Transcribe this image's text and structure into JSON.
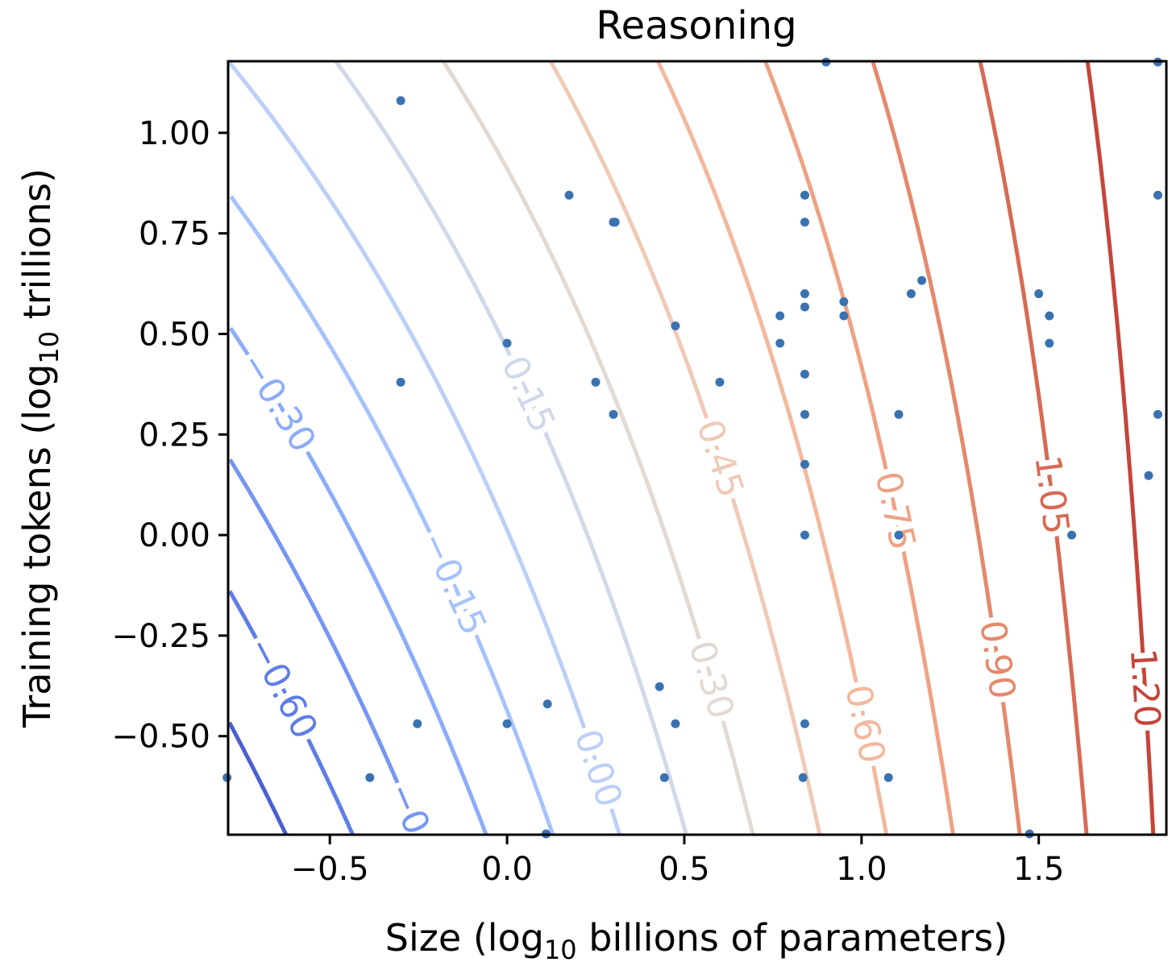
{
  "chart_data": {
    "type": "contour+scatter",
    "title": "Reasoning",
    "xlabel": {
      "prefix": "Size (log",
      "sub": "10",
      "suffix": "  billions of parameters)"
    },
    "ylabel": {
      "prefix": "Training tokens (log",
      "sub": "10",
      "suffix": "  trillions)"
    },
    "xlim": [
      -0.787,
      1.86
    ],
    "ylim": [
      -0.745,
      1.178
    ],
    "xticks": [
      -0.5,
      0.0,
      0.5,
      1.0,
      1.5
    ],
    "xtick_labels": [
      "−0.5",
      "0.0",
      "0.5",
      "1.0",
      "1.5"
    ],
    "yticks": [
      -0.5,
      -0.25,
      0.0,
      0.25,
      0.5,
      0.75,
      1.0
    ],
    "ytick_labels": [
      "−0.50",
      "−0.25",
      "0.00",
      "0.25",
      "0.50",
      "0.75",
      "1.00"
    ],
    "contour_levels": [
      -0.75,
      -0.6,
      -0.45,
      -0.3,
      -0.15,
      0.0,
      0.15,
      0.3,
      0.45,
      0.6,
      0.75,
      0.9,
      1.05,
      1.2
    ],
    "contour_colors": [
      "#4a5fd0",
      "#5f7de6",
      "#7596f3",
      "#8cacfb",
      "#a6c2fd",
      "#bccff6",
      "#d0d8ea",
      "#e2d9d3",
      "#efcab7",
      "#f3b89e",
      "#eea285",
      "#e4896c",
      "#d66a54",
      "#c4453a"
    ],
    "contour_labels": [
      {
        "level": -0.6,
        "text": "−0.60",
        "y": -0.38
      },
      {
        "level": -0.45,
        "text": "−0",
        "y": -0.68
      },
      {
        "level": -0.3,
        "text": "−0.30",
        "y": 0.33
      },
      {
        "level": -0.15,
        "text": "−0.15",
        "y": -0.12
      },
      {
        "level": 0.0,
        "text": "0.00",
        "y": -0.58
      },
      {
        "level": 0.15,
        "text": "0.15",
        "y": 0.35
      },
      {
        "level": 0.3,
        "text": "0.30",
        "y": -0.36
      },
      {
        "level": 0.45,
        "text": "0.45",
        "y": 0.19
      },
      {
        "level": 0.6,
        "text": "0.60",
        "y": -0.47
      },
      {
        "level": 0.75,
        "text": "0.75",
        "y": 0.06
      },
      {
        "level": 0.9,
        "text": "0.90",
        "y": -0.31
      },
      {
        "level": 1.05,
        "text": "1.05",
        "y": 0.1
      },
      {
        "level": 1.2,
        "text": "1.20",
        "y": -0.38
      }
    ],
    "surface_model": "z = a(y)*x + b(y), a(y)=0.797-0.157*(y+0.745), b(y)=-0.253+0.334*(y+0.745)",
    "points_color": "#3a72b0",
    "points": [
      [
        0.9,
        1.176
      ],
      [
        1.836,
        1.176
      ],
      [
        -0.3,
        1.08
      ],
      [
        0.175,
        0.845
      ],
      [
        0.84,
        0.845
      ],
      [
        1.836,
        0.845
      ],
      [
        0.3,
        0.778
      ],
      [
        0.305,
        0.778
      ],
      [
        0.84,
        0.778
      ],
      [
        0.84,
        0.6
      ],
      [
        0.84,
        0.567
      ],
      [
        0.95,
        0.58
      ],
      [
        0.95,
        0.545
      ],
      [
        1.14,
        0.6
      ],
      [
        1.17,
        0.633
      ],
      [
        0.77,
        0.545
      ],
      [
        0.77,
        0.477
      ],
      [
        1.5,
        0.6
      ],
      [
        1.53,
        0.545
      ],
      [
        1.53,
        0.477
      ],
      [
        0.475,
        0.52
      ],
      [
        0.0,
        0.477
      ],
      [
        -0.3,
        0.38
      ],
      [
        0.25,
        0.38
      ],
      [
        0.6,
        0.38
      ],
      [
        0.84,
        0.4
      ],
      [
        0.3,
        0.3
      ],
      [
        0.84,
        0.3
      ],
      [
        1.105,
        0.3
      ],
      [
        1.836,
        0.3
      ],
      [
        0.84,
        0.176
      ],
      [
        0.84,
        0.0
      ],
      [
        1.105,
        0.0
      ],
      [
        1.593,
        0.0
      ],
      [
        1.81,
        0.148
      ],
      [
        0.43,
        -0.377
      ],
      [
        0.114,
        -0.42
      ],
      [
        -0.253,
        -0.469
      ],
      [
        0.0,
        -0.469
      ],
      [
        0.475,
        -0.469
      ],
      [
        0.84,
        -0.469
      ],
      [
        -0.79,
        -0.603
      ],
      [
        -0.387,
        -0.603
      ],
      [
        0.444,
        -0.603
      ],
      [
        0.835,
        -0.603
      ],
      [
        1.076,
        -0.603
      ],
      [
        0.11,
        -0.743
      ],
      [
        1.474,
        -0.743
      ]
    ]
  }
}
